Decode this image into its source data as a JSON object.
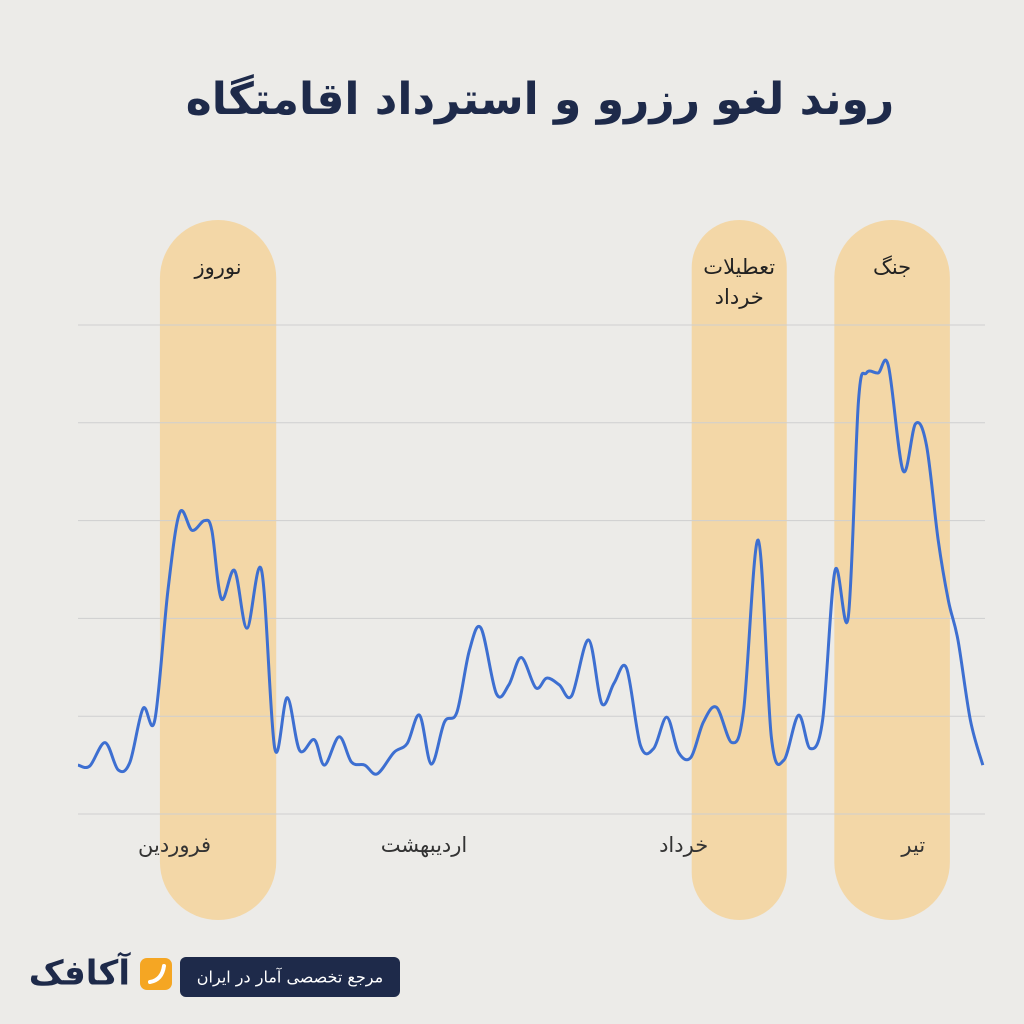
{
  "chart_data": {
    "type": "line",
    "title": "روند لغو رزرو و استرداد اقامتگاه",
    "x": [
      0,
      1.6,
      3.7,
      5.5,
      7.1,
      8.9,
      10.5,
      12.3,
      13.9,
      15.6,
      17.3,
      18.3,
      19.6,
      21.4,
      23.1,
      25.1,
      26.9,
      28.6,
      30.3,
      32.3,
      33.7,
      35.7,
      37.4,
      39.2,
      40.9,
      43.2,
      45,
      46.7,
      48.3,
      50.1,
      51.8,
      53.5,
      55.1,
      57.2,
      58.9,
      60.6,
      62.6,
      64.1,
      65.8,
      67.5,
      69.8,
      71.6,
      73.3,
      75,
      76.9,
      78.7,
      80.5,
      82.1,
      83.8,
      85.5,
      87.3,
      89.4,
      91,
      93,
      94.8,
      96.5,
      98.5,
      100.1,
      101.8,
      103.5,
      105.3,
      106.7,
      107.8,
      109.4,
      110.8,
      112.8,
      114.5,
      116,
      117.6,
      119,
      120.3,
      122,
      123.7
    ],
    "values": [
      0.5,
      0.49,
      0.73,
      0.45,
      0.53,
      1.08,
      0.96,
      2.29,
      3.08,
      2.9,
      3.0,
      2.9,
      2.2,
      2.49,
      1.9,
      2.49,
      0.67,
      1.19,
      0.65,
      0.76,
      0.5,
      0.79,
      0.53,
      0.5,
      0.41,
      0.63,
      0.72,
      1.01,
      0.51,
      0.94,
      1.04,
      1.67,
      1.9,
      1.23,
      1.32,
      1.6,
      1.29,
      1.39,
      1.32,
      1.21,
      1.78,
      1.13,
      1.34,
      1.49,
      0.7,
      0.67,
      0.99,
      0.63,
      0.58,
      0.94,
      1.09,
      0.73,
      1.06,
      2.8,
      0.78,
      0.55,
      1.01,
      0.67,
      0.96,
      2.49,
      2.01,
      4.22,
      4.51,
      4.51,
      4.58,
      3.51,
      3.99,
      3.77,
      2.8,
      2.18,
      1.78,
      0.96,
      0.5
    ],
    "color": "#3d6fd1",
    "xlim": [
      0,
      124
    ],
    "xticks": [
      {
        "value": 13.2,
        "label": "فروردین"
      },
      {
        "value": 47.3,
        "label": "اردیبهشت"
      },
      {
        "value": 82.8,
        "label": "خرداد"
      },
      {
        "value": 114.2,
        "label": "تیر"
      }
    ],
    "ylim": [
      0,
      5
    ],
    "yticks": [
      0,
      1,
      2,
      3,
      4,
      5
    ],
    "grid": true,
    "show_y_tick_labels": false,
    "band_color": "#f5d39b",
    "annotations": [
      {
        "lines": [
          "نوروز"
        ],
        "start": 11.2,
        "end": 27.1
      },
      {
        "lines": [
          "تعطیلات",
          "خرداد"
        ],
        "start": 83.9,
        "end": 96.9
      },
      {
        "lines": [
          "جنگ"
        ],
        "start": 103.4,
        "end": 119.2
      }
    ]
  },
  "footer": {
    "brand": "آکافک",
    "tagline": "مرجع تخصصی آمار در ایران"
  }
}
